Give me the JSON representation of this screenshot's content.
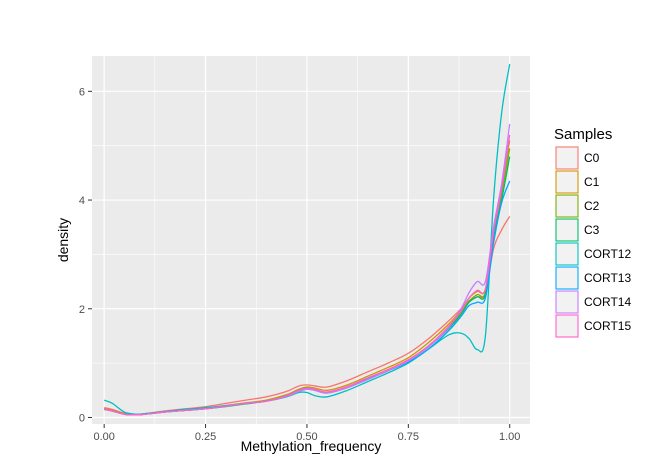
{
  "chart_data": {
    "type": "line",
    "title": "",
    "xlabel": "Methylation_frequency",
    "ylabel": "density",
    "xlim": [
      -0.03,
      1.05
    ],
    "ylim": [
      -0.12,
      6.65
    ],
    "x_ticks": [
      0.0,
      0.25,
      0.5,
      0.75,
      1.0
    ],
    "x_tick_labels": [
      "0.00",
      "0.25",
      "0.50",
      "0.75",
      "1.00"
    ],
    "y_ticks": [
      0,
      2,
      4,
      6
    ],
    "y_tick_labels": [
      "0",
      "2",
      "4",
      "6"
    ],
    "grid": true,
    "legend": {
      "title": "Samples",
      "position": "right"
    },
    "x": [
      0.0,
      0.02,
      0.05,
      0.08,
      0.1,
      0.15,
      0.2,
      0.25,
      0.3,
      0.35,
      0.4,
      0.45,
      0.48,
      0.5,
      0.52,
      0.55,
      0.6,
      0.65,
      0.7,
      0.75,
      0.8,
      0.85,
      0.88,
      0.9,
      0.92,
      0.94,
      0.96,
      0.98,
      1.0
    ],
    "series": [
      {
        "name": "C0",
        "color": "#F8766D",
        "values": [
          0.18,
          0.15,
          0.08,
          0.06,
          0.07,
          0.12,
          0.16,
          0.2,
          0.26,
          0.32,
          0.38,
          0.48,
          0.58,
          0.6,
          0.58,
          0.56,
          0.68,
          0.84,
          1.0,
          1.18,
          1.45,
          1.78,
          2.0,
          2.15,
          2.22,
          2.28,
          3.1,
          3.45,
          3.7
        ]
      },
      {
        "name": "C1",
        "color": "#CD9600",
        "values": [
          0.16,
          0.13,
          0.07,
          0.05,
          0.06,
          0.1,
          0.14,
          0.17,
          0.22,
          0.27,
          0.32,
          0.42,
          0.52,
          0.56,
          0.54,
          0.5,
          0.6,
          0.76,
          0.92,
          1.1,
          1.38,
          1.72,
          1.98,
          2.2,
          2.32,
          2.36,
          3.4,
          4.2,
          5.1
        ]
      },
      {
        "name": "C2",
        "color": "#7CAE00",
        "values": [
          0.15,
          0.12,
          0.06,
          0.05,
          0.06,
          0.1,
          0.13,
          0.16,
          0.21,
          0.26,
          0.3,
          0.4,
          0.5,
          0.55,
          0.52,
          0.46,
          0.56,
          0.72,
          0.88,
          1.06,
          1.32,
          1.66,
          1.94,
          2.14,
          2.26,
          2.3,
          3.3,
          4.1,
          4.95
        ]
      },
      {
        "name": "C3",
        "color": "#00BE67",
        "values": [
          0.15,
          0.12,
          0.06,
          0.05,
          0.06,
          0.1,
          0.13,
          0.16,
          0.2,
          0.25,
          0.3,
          0.39,
          0.48,
          0.52,
          0.5,
          0.45,
          0.55,
          0.7,
          0.86,
          1.04,
          1.3,
          1.64,
          1.9,
          2.12,
          2.22,
          2.26,
          3.3,
          4.0,
          4.8
        ]
      },
      {
        "name": "CORT12",
        "color": "#00BFC4",
        "values": [
          0.32,
          0.26,
          0.1,
          0.06,
          0.07,
          0.11,
          0.15,
          0.18,
          0.22,
          0.26,
          0.3,
          0.38,
          0.46,
          0.46,
          0.4,
          0.38,
          0.5,
          0.66,
          0.82,
          1.0,
          1.26,
          1.52,
          1.55,
          1.45,
          1.25,
          1.5,
          4.0,
          5.6,
          6.5
        ]
      },
      {
        "name": "CORT13",
        "color": "#00A9FF",
        "values": [
          0.15,
          0.12,
          0.06,
          0.05,
          0.06,
          0.1,
          0.13,
          0.16,
          0.21,
          0.26,
          0.3,
          0.4,
          0.5,
          0.53,
          0.5,
          0.46,
          0.56,
          0.72,
          0.86,
          1.02,
          1.26,
          1.6,
          1.86,
          2.06,
          2.12,
          2.2,
          3.2,
          3.95,
          4.35
        ]
      },
      {
        "name": "CORT14",
        "color": "#C77CFF",
        "values": [
          0.15,
          0.12,
          0.06,
          0.05,
          0.06,
          0.1,
          0.13,
          0.16,
          0.21,
          0.26,
          0.3,
          0.39,
          0.48,
          0.52,
          0.5,
          0.45,
          0.55,
          0.7,
          0.86,
          1.04,
          1.3,
          1.66,
          2.0,
          2.3,
          2.5,
          2.5,
          3.5,
          4.3,
          5.4
        ]
      },
      {
        "name": "CORT15",
        "color": "#FF61CC",
        "values": [
          0.15,
          0.12,
          0.06,
          0.05,
          0.06,
          0.1,
          0.13,
          0.16,
          0.21,
          0.26,
          0.3,
          0.4,
          0.5,
          0.54,
          0.52,
          0.47,
          0.57,
          0.73,
          0.88,
          1.06,
          1.32,
          1.68,
          1.96,
          2.2,
          2.34,
          2.36,
          3.4,
          4.2,
          5.2
        ]
      }
    ]
  },
  "colors": {
    "panel_background": "#EBEBEB",
    "grid_major": "#FFFFFF",
    "legend_key_background": "#F2F2F2"
  }
}
